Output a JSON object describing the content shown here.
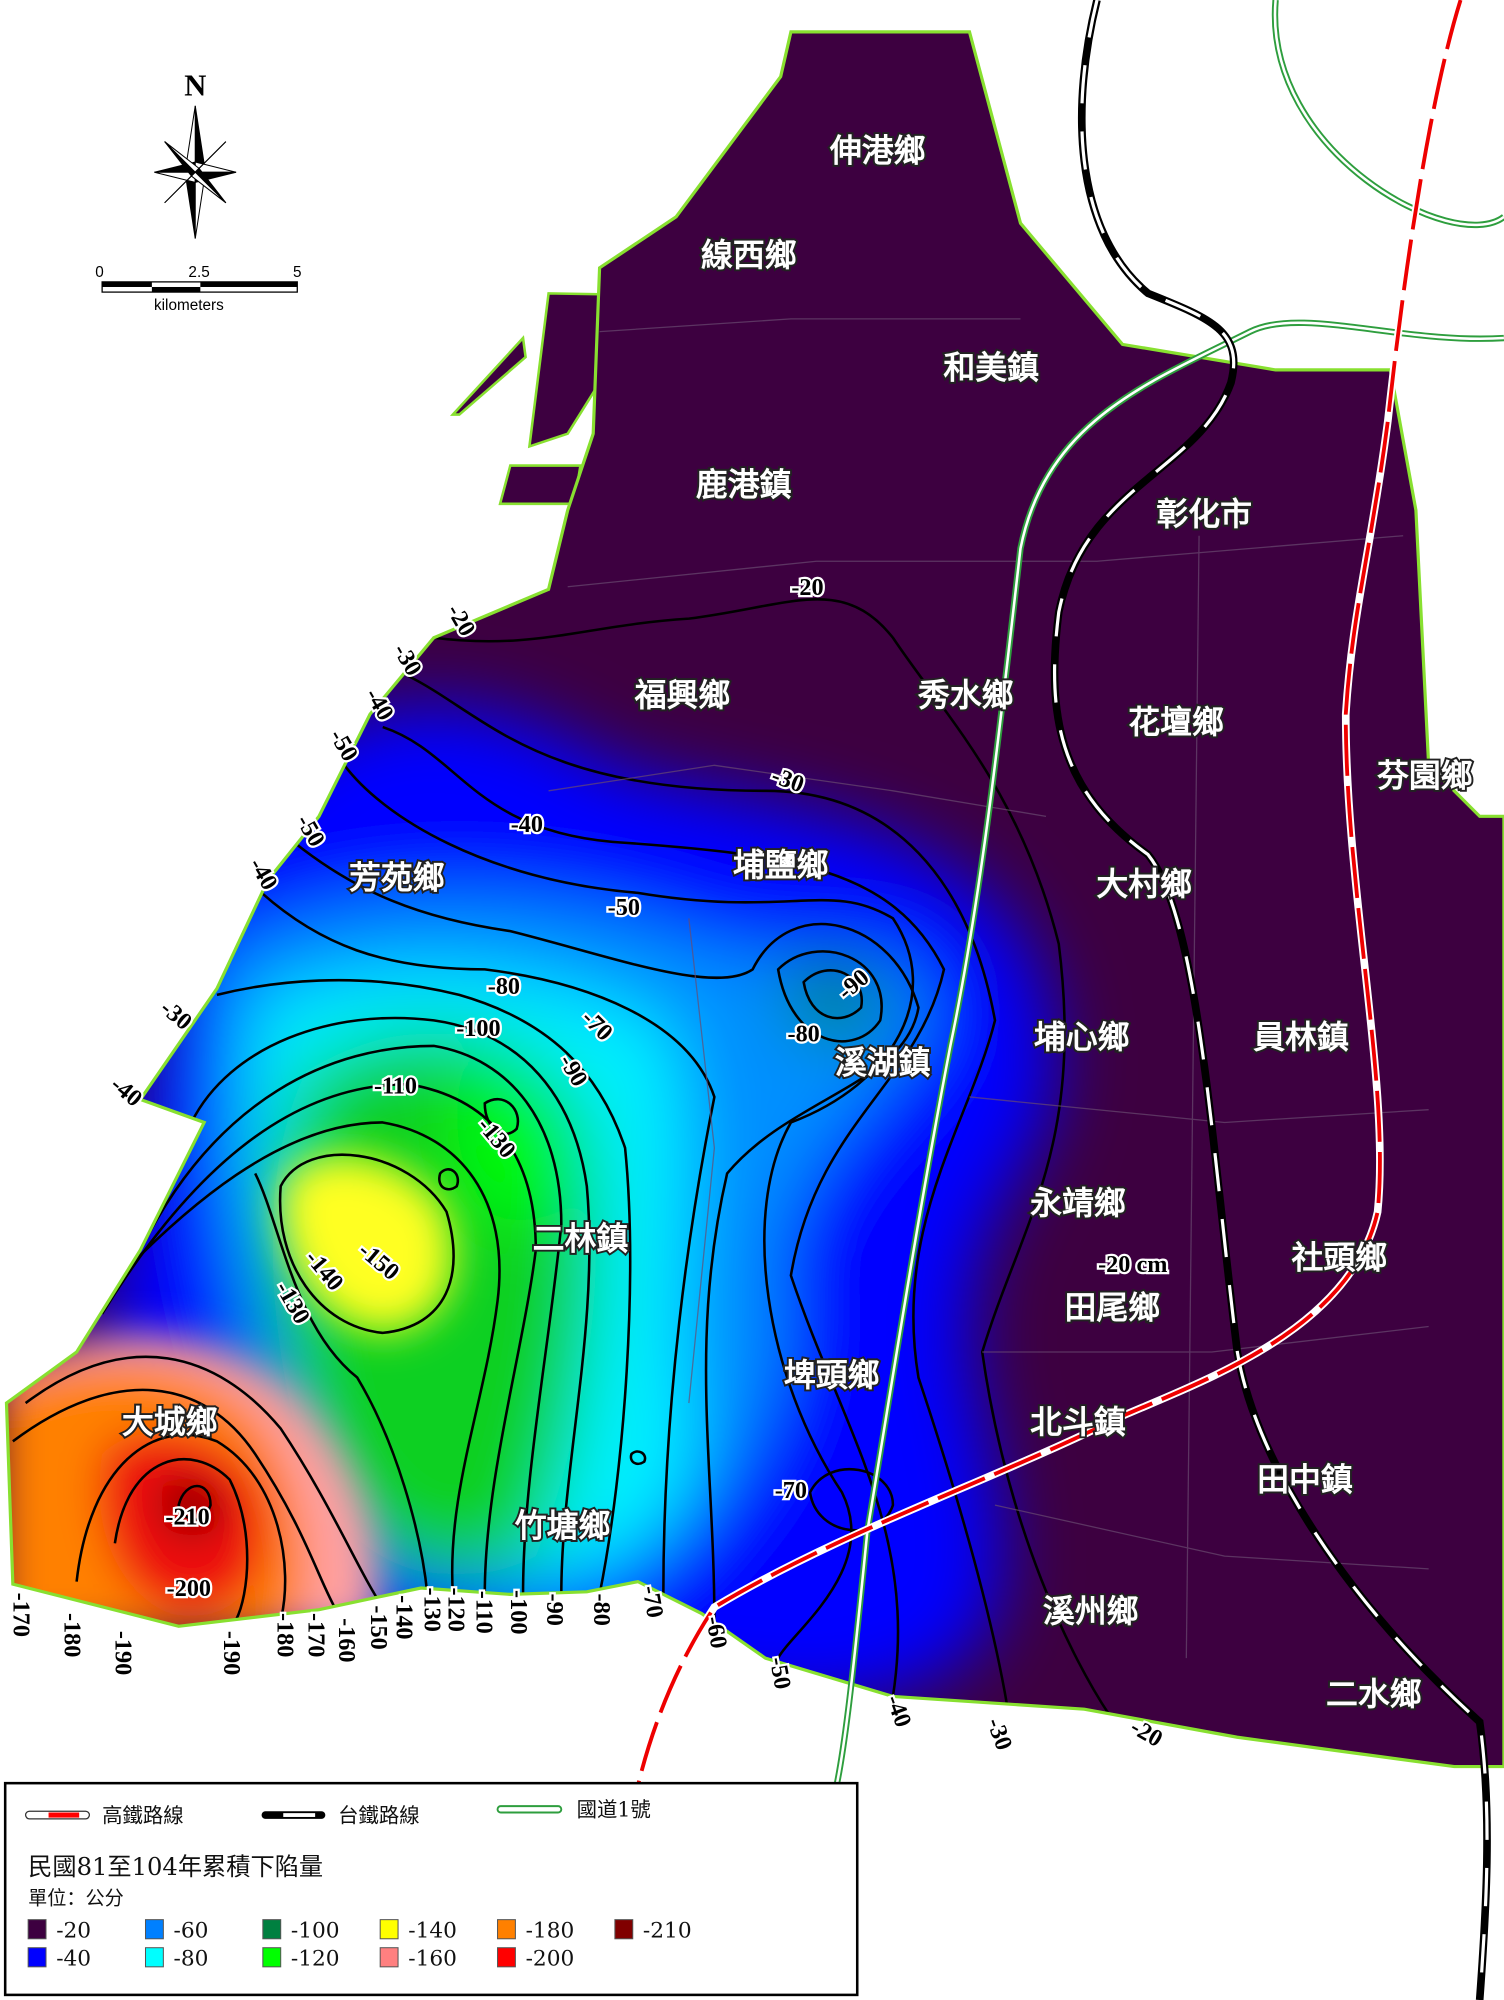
{
  "compass": {
    "north_label": "N"
  },
  "scale_bar": {
    "ticks": [
      "0",
      "2.5",
      "5"
    ],
    "unit": "kilometers"
  },
  "townships": [
    "伸港鄉",
    "線西鄉",
    "和美鎮",
    "鹿港鎮",
    "彰化市",
    "福興鄉",
    "秀水鄉",
    "花壇鄉",
    "芬園鄉",
    "芳苑鄉",
    "埔鹽鄉",
    "大村鄉",
    "埔心鄉",
    "員林鎮",
    "溪湖鎮",
    "永靖鄉",
    "二林鎮",
    "社頭鄉",
    "田尾鄉",
    "埤頭鄉",
    "北斗鎮",
    "大城鄉",
    "田中鎮",
    "竹塘鄉",
    "溪州鄉",
    "二水鄉"
  ],
  "contour_labels": [
    "-20",
    "-20",
    "-30",
    "-40",
    "-50",
    "-50",
    "-40",
    "-30",
    "-40",
    "-30",
    "-40",
    "-50",
    "-80",
    "-70",
    "-100",
    "-90",
    "-110",
    "-130",
    "-140",
    "-150",
    "-130",
    "-90",
    "-80",
    "-20 cm",
    "-70",
    "-210",
    "-200",
    "-170",
    "-180",
    "-190",
    "-190",
    "-180",
    "-170",
    "-160",
    "-150",
    "-140",
    "-130",
    "-120",
    "-110",
    "-100",
    "-90",
    "-80",
    "-70",
    "-60",
    "-50",
    "-40",
    "-30",
    "-20"
  ],
  "legend": {
    "lines": [
      {
        "label": "高鐵路線",
        "type": "high-speed-rail",
        "color": "#ff0000"
      },
      {
        "label": "台鐵路線",
        "type": "railway",
        "color": "#000000"
      },
      {
        "label": "國道1號",
        "type": "freeway",
        "color": "#2e9e3e"
      }
    ],
    "title": "民國81至104年累積下陷量",
    "unit": "單位：公分",
    "classes": [
      {
        "label": "-20",
        "color": "#3d0040"
      },
      {
        "label": "-40",
        "color": "#0000ff"
      },
      {
        "label": "-60",
        "color": "#0080ff"
      },
      {
        "label": "-80",
        "color": "#00ffff"
      },
      {
        "label": "-100",
        "color": "#008040"
      },
      {
        "label": "-120",
        "color": "#00ff00"
      },
      {
        "label": "-140",
        "color": "#ffff00"
      },
      {
        "label": "-160",
        "color": "#ff8080"
      },
      {
        "label": "-180",
        "color": "#ff8000"
      },
      {
        "label": "-200",
        "color": "#ff0000"
      },
      {
        "label": "-210",
        "color": "#800000"
      }
    ]
  }
}
